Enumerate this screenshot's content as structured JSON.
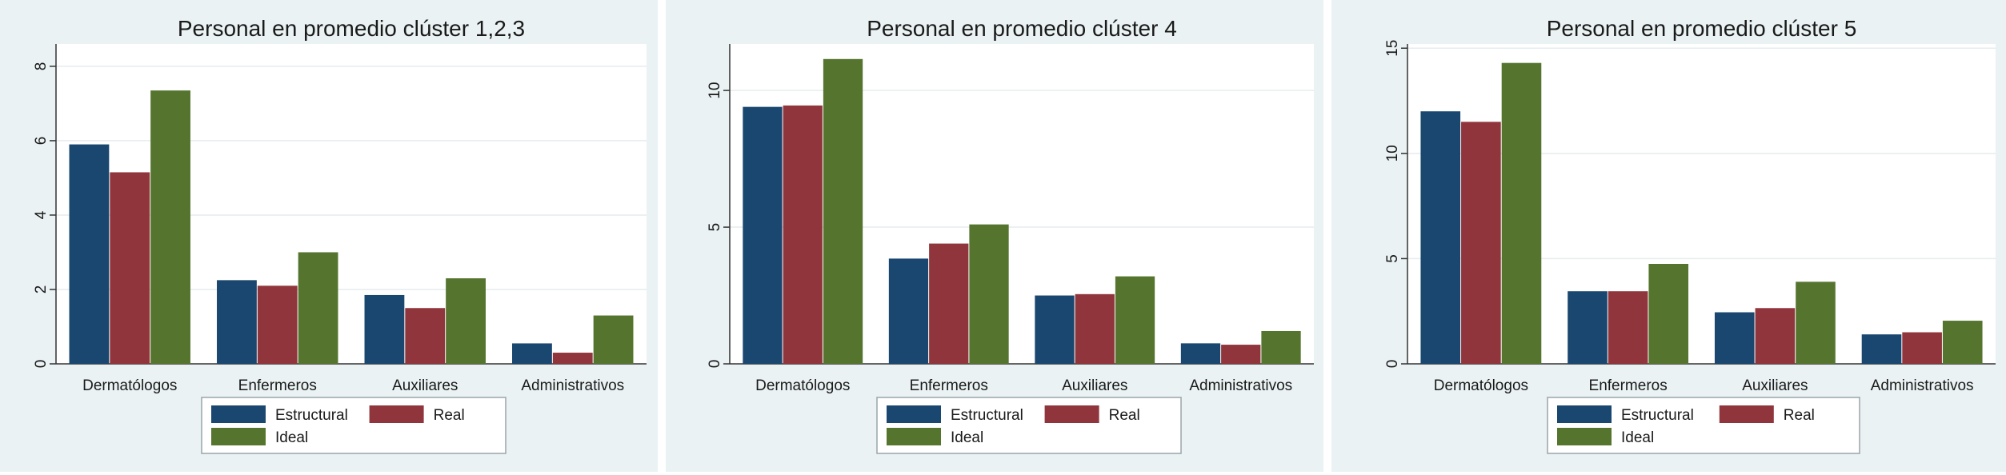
{
  "chart_data": [
    {
      "type": "bar",
      "title": "Personal en promedio clúster 1,2,3",
      "categories": [
        "Dermatólogos",
        "Enfermeros",
        "Auxiliares",
        "Administrativos"
      ],
      "series": [
        {
          "name": "Estructural",
          "color": "#1a476f",
          "values": [
            5.9,
            2.25,
            1.85,
            0.55
          ]
        },
        {
          "name": "Real",
          "color": "#90353b",
          "values": [
            5.15,
            2.1,
            1.5,
            0.3
          ]
        },
        {
          "name": "Ideal",
          "color": "#55752f",
          "values": [
            7.35,
            3.0,
            2.3,
            1.3
          ]
        }
      ],
      "ylim": [
        0,
        8.6
      ],
      "yticks": [
        0,
        2,
        4,
        6,
        8
      ],
      "ytick_labels": [
        "0",
        "2",
        "4",
        "6",
        "8"
      ],
      "grid": true,
      "legend": "bottom"
    },
    {
      "type": "bar",
      "title": "Personal en promedio clúster 4",
      "categories": [
        "Dermatólogos",
        "Enfermeros",
        "Auxiliares",
        "Administrativos"
      ],
      "series": [
        {
          "name": "Estructural",
          "color": "#1a476f",
          "values": [
            9.4,
            3.85,
            2.5,
            0.75
          ]
        },
        {
          "name": "Real",
          "color": "#90353b",
          "values": [
            9.45,
            4.4,
            2.55,
            0.7
          ]
        },
        {
          "name": "Ideal",
          "color": "#55752f",
          "values": [
            11.15,
            5.1,
            3.2,
            1.2
          ]
        }
      ],
      "ylim": [
        0,
        11.7
      ],
      "yticks": [
        0,
        5,
        10
      ],
      "ytick_labels": [
        "0",
        "5",
        "10"
      ],
      "grid": true,
      "legend": "bottom"
    },
    {
      "type": "bar",
      "title": "Personal en promedio clúster 5",
      "categories": [
        "Dermatólogos",
        "Enfermeros",
        "Auxiliares",
        "Administrativos"
      ],
      "series": [
        {
          "name": "Estructural",
          "color": "#1a476f",
          "values": [
            12.0,
            3.45,
            2.45,
            1.4
          ]
        },
        {
          "name": "Real",
          "color": "#90353b",
          "values": [
            11.5,
            3.45,
            2.65,
            1.5
          ]
        },
        {
          "name": "Ideal",
          "color": "#55752f",
          "values": [
            14.3,
            4.75,
            3.9,
            2.05
          ]
        }
      ],
      "ylim": [
        0,
        15.2
      ],
      "yticks": [
        0,
        5,
        10,
        15
      ],
      "ytick_labels": [
        "0",
        "5",
        "10",
        "15"
      ],
      "grid": true,
      "legend": "bottom"
    }
  ]
}
